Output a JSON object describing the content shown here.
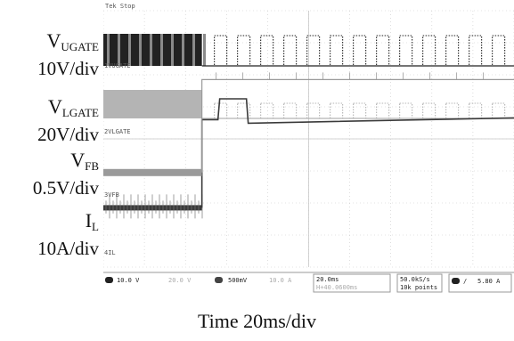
{
  "labels": {
    "vugate_name": "V",
    "vugate_sub": "UGATE",
    "vugate_scale": "10V/div",
    "vlgate_name": "V",
    "vlgate_sub": "LGATE",
    "vlgate_scale": "20V/div",
    "vfb_name": "V",
    "vfb_sub": "FB",
    "vfb_scale": "0.5V/div",
    "il_name": "I",
    "il_sub": "L",
    "il_scale": "10A/div"
  },
  "x_label": "Time 20ms/div",
  "scope_header": "Tek Stop",
  "channel_tags": [
    "1VUGATE",
    "2VLGATE",
    "3VFB",
    "4IL"
  ],
  "status_bar": {
    "ch1": "10.0 V",
    "ch2": "20.0 V",
    "ch3": "500mV",
    "ch4": "10.0 A",
    "timebase": "20.0ms",
    "delay": "H+40.0600ms",
    "rate": "50.0kS/s",
    "points": "10k points",
    "trigger": "5.80 A"
  },
  "chart_data": {
    "type": "line",
    "x_label": "Time 20ms/div",
    "x_divisions": 10,
    "y_divisions": 8,
    "event_division": 2.4,
    "series": [
      {
        "name": "V_UGATE",
        "scale": "10V/div",
        "before": "dense switching",
        "after": "burst switching, 13 bursts"
      },
      {
        "name": "V_LGATE",
        "scale": "20V/div",
        "before": "dense switching",
        "after": "burst switching, 13 bursts"
      },
      {
        "name": "V_FB",
        "scale": "0.5V/div",
        "before_level_div": 6.15,
        "after_level_div": 3.4,
        "bump_level_div": 2.75
      },
      {
        "name": "I_L",
        "scale": "10A/div",
        "before_level_div": 5.05,
        "after_level_div": 1.15
      }
    ],
    "colors": {
      "ugate": "#222222",
      "lgate": "#b4b4b4",
      "fb": "#3a3a3a",
      "il": "#9a9a9a",
      "grid": "#c8c8c8"
    }
  }
}
